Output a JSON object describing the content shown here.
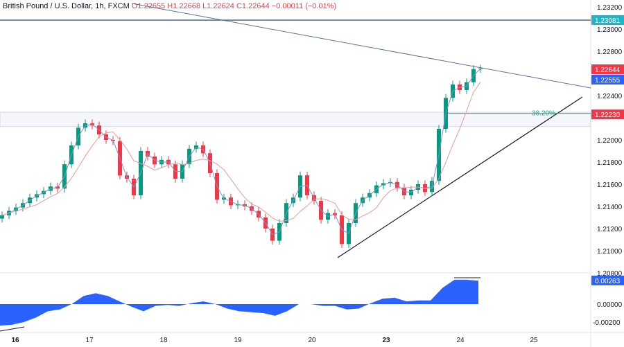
{
  "header": {
    "symbol": "British Pound / U.S. Dollar, 1h, FXCM",
    "open": "O1.22655",
    "high": "H1.22668",
    "low": "L1.22624",
    "close": "C1.22644",
    "change": "−0.00011 (−0.01%)"
  },
  "chart_data": {
    "type": "candlestick",
    "price_axis": {
      "ticks": [
        "1.23200",
        "1.23000",
        "1.22800",
        "1.22400",
        "1.22000",
        "1.21800",
        "1.21600",
        "1.21400",
        "1.21200",
        "1.21000",
        "1.20800"
      ],
      "range": [
        1.2075,
        1.2326
      ]
    },
    "time_axis": {
      "ticks": [
        "16",
        "17",
        "18",
        "19",
        "20",
        "23",
        "24",
        "25"
      ],
      "bold": [
        "16",
        "23"
      ]
    },
    "closes": [
      1.2132,
      1.2136,
      1.2139,
      1.2143,
      1.2148,
      1.2151,
      1.2154,
      1.2158,
      1.2156,
      1.2178,
      1.2195,
      1.2211,
      1.2215,
      1.2213,
      1.2205,
      1.22,
      1.2199,
      1.2168,
      1.2165,
      1.215,
      1.219,
      1.2185,
      1.2178,
      1.2182,
      1.2178,
      1.2165,
      1.2178,
      1.2192,
      1.2195,
      1.2188,
      1.217,
      1.2146,
      1.2148,
      1.2141,
      1.2142,
      1.214,
      1.2136,
      1.213,
      1.212,
      1.2109,
      1.2125,
      1.2143,
      1.2148,
      1.2168,
      1.215,
      1.2145,
      1.2128,
      1.2134,
      1.2132,
      1.2106,
      1.2125,
      1.2143,
      1.2148,
      1.2152,
      1.2159,
      1.2161,
      1.2162,
      1.2157,
      1.215,
      1.2155,
      1.216,
      1.2153,
      1.2163,
      1.221,
      1.2238,
      1.225,
      1.2245,
      1.2252,
      1.2264,
      1.22644
    ],
    "price_labels": [
      {
        "value": "1.23081",
        "color": "#22b3c6"
      },
      {
        "value": "1.22644",
        "color": "#f23645"
      },
      {
        "value": "1.22555",
        "color": "#2962ff"
      },
      {
        "value": "1.22230",
        "color": "#f23645"
      }
    ],
    "horizontal_level": 1.23081,
    "zone": [
      1.2212,
      1.2225
    ],
    "fib_label": "38.20%",
    "fib_level": 1.2224,
    "colors": {
      "up": "#089981",
      "down": "#f23645",
      "fast_ma": "#7b93c9",
      "slow_ma": "#e59c9c",
      "oscillator": "#2962ff"
    },
    "oscillator": {
      "values": [
        -0.0024,
        -0.0023,
        -0.002,
        -0.0015,
        -0.0008,
        -0.0006,
        0.0,
        0.0009,
        0.0012,
        0.0009,
        0.0003,
        -0.0003,
        -0.0008,
        -0.0002,
        -0.0001,
        -0.0002,
        0.0001,
        0.0003,
        0.0,
        -0.0005,
        -0.0008,
        -0.0009,
        -0.001,
        -0.0013,
        -0.0008,
        0.0,
        0.0,
        -0.0002,
        -0.0002,
        -0.0006,
        -0.0005,
        0.0001,
        0.0006,
        0.0007,
        0.0003,
        0.0004,
        0.0004,
        0.0018,
        0.0027,
        0.0027,
        0.0026
      ],
      "ticks": [
        "0.00000",
        "-0.00200"
      ],
      "last_label": "0.00263"
    }
  }
}
